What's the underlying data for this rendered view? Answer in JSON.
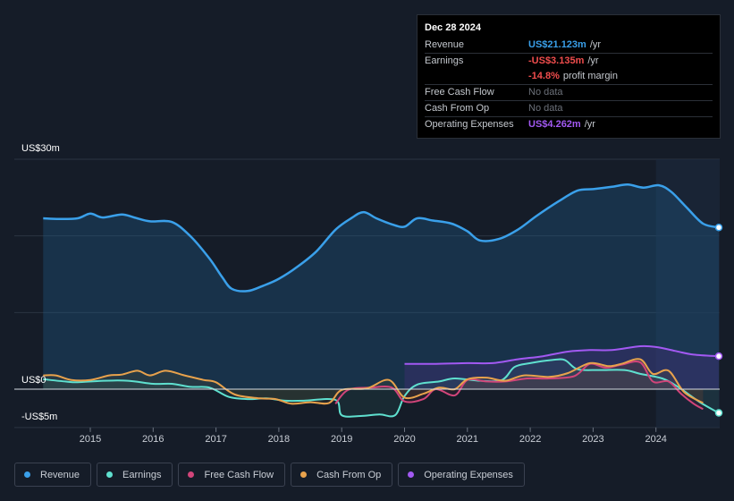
{
  "tooltip": {
    "date": "Dec 28 2024",
    "rows": {
      "revenue": {
        "label": "Revenue",
        "value": "US$21.123m",
        "unit": "/yr",
        "color": "#3aa0ea"
      },
      "earnings": {
        "label": "Earnings",
        "value": "-US$3.135m",
        "unit": "/yr",
        "color": "#f04d4d"
      },
      "margin": {
        "value": "-14.8%",
        "unit": "profit margin",
        "color": "#f04d4d"
      },
      "fcf": {
        "label": "Free Cash Flow",
        "value": "No data"
      },
      "cfo": {
        "label": "Cash From Op",
        "value": "No data"
      },
      "opex": {
        "label": "Operating Expenses",
        "value": "US$4.262m",
        "unit": "/yr",
        "color": "#a259f2"
      }
    }
  },
  "chart_data": {
    "type": "area",
    "title": "",
    "xlabel": "",
    "ylabel": "",
    "ylim": [
      -5,
      30
    ],
    "y_tick_labels": [
      "US$30m",
      "US$0",
      "-US$5m"
    ],
    "x_tick_labels": [
      "2015",
      "2016",
      "2017",
      "2018",
      "2019",
      "2020",
      "2021",
      "2022",
      "2023",
      "2024"
    ],
    "x_range": [
      2014.2,
      2025.0
    ],
    "highlight_start": 2024.0,
    "series": [
      {
        "name": "Revenue",
        "color": "#3aa0ea",
        "points": [
          [
            2014.25,
            22.3
          ],
          [
            2014.5,
            22.2
          ],
          [
            2014.8,
            22.3
          ],
          [
            2015.0,
            22.9
          ],
          [
            2015.2,
            22.4
          ],
          [
            2015.5,
            22.8
          ],
          [
            2015.7,
            22.4
          ],
          [
            2015.95,
            21.9
          ],
          [
            2016.3,
            21.8
          ],
          [
            2016.6,
            19.9
          ],
          [
            2016.9,
            17.0
          ],
          [
            2017.1,
            14.6
          ],
          [
            2017.25,
            13.1
          ],
          [
            2017.5,
            12.8
          ],
          [
            2017.75,
            13.5
          ],
          [
            2018.0,
            14.4
          ],
          [
            2018.3,
            16.0
          ],
          [
            2018.6,
            18.0
          ],
          [
            2018.9,
            20.8
          ],
          [
            2019.15,
            22.3
          ],
          [
            2019.35,
            23.1
          ],
          [
            2019.55,
            22.3
          ],
          [
            2019.8,
            21.5
          ],
          [
            2020.0,
            21.2
          ],
          [
            2020.2,
            22.3
          ],
          [
            2020.45,
            22.0
          ],
          [
            2020.75,
            21.6
          ],
          [
            2021.0,
            20.6
          ],
          [
            2021.2,
            19.4
          ],
          [
            2021.5,
            19.6
          ],
          [
            2021.8,
            20.8
          ],
          [
            2022.1,
            22.6
          ],
          [
            2022.45,
            24.5
          ],
          [
            2022.75,
            25.9
          ],
          [
            2023.0,
            26.1
          ],
          [
            2023.3,
            26.4
          ],
          [
            2023.55,
            26.7
          ],
          [
            2023.8,
            26.3
          ],
          [
            2024.05,
            26.6
          ],
          [
            2024.25,
            25.7
          ],
          [
            2024.5,
            23.6
          ],
          [
            2024.75,
            21.6
          ],
          [
            2025.0,
            21.1
          ]
        ]
      },
      {
        "name": "Earnings",
        "color": "#5fe0cf",
        "points": [
          [
            2014.25,
            1.3
          ],
          [
            2014.6,
            1.0
          ],
          [
            2014.8,
            0.9
          ],
          [
            2015.2,
            1.1
          ],
          [
            2015.6,
            1.1
          ],
          [
            2016.0,
            0.7
          ],
          [
            2016.3,
            0.7
          ],
          [
            2016.6,
            0.3
          ],
          [
            2016.9,
            0.2
          ],
          [
            2017.2,
            -1.0
          ],
          [
            2017.5,
            -1.3
          ],
          [
            2017.8,
            -1.2
          ],
          [
            2018.1,
            -1.5
          ],
          [
            2018.4,
            -1.5
          ],
          [
            2018.9,
            -1.4
          ],
          [
            2019.0,
            -3.4
          ],
          [
            2019.3,
            -3.5
          ],
          [
            2019.6,
            -3.3
          ],
          [
            2019.85,
            -3.4
          ],
          [
            2020.0,
            -0.9
          ],
          [
            2020.2,
            0.6
          ],
          [
            2020.55,
            1.0
          ],
          [
            2020.8,
            1.4
          ],
          [
            2021.2,
            1.1
          ],
          [
            2021.55,
            1.2
          ],
          [
            2021.75,
            2.9
          ],
          [
            2022.0,
            3.4
          ],
          [
            2022.35,
            3.8
          ],
          [
            2022.55,
            3.8
          ],
          [
            2022.75,
            2.6
          ],
          [
            2023.1,
            2.5
          ],
          [
            2023.5,
            2.5
          ],
          [
            2023.75,
            2.0
          ],
          [
            2024.1,
            1.4
          ],
          [
            2024.35,
            0.3
          ],
          [
            2024.7,
            -1.7
          ],
          [
            2025.0,
            -3.1
          ]
        ]
      },
      {
        "name": "Free Cash Flow",
        "color": "#d2457a",
        "points": [
          [
            2018.9,
            -1.9
          ],
          [
            2019.1,
            -0.1
          ],
          [
            2019.45,
            0.2
          ],
          [
            2019.8,
            0.2
          ],
          [
            2020.0,
            -1.6
          ],
          [
            2020.3,
            -1.3
          ],
          [
            2020.5,
            0.0
          ],
          [
            2020.8,
            -0.8
          ],
          [
            2021.0,
            1.2
          ],
          [
            2021.3,
            1.0
          ],
          [
            2021.6,
            1.0
          ],
          [
            2021.95,
            1.4
          ],
          [
            2022.3,
            1.4
          ],
          [
            2022.7,
            1.7
          ],
          [
            2022.95,
            3.3
          ],
          [
            2023.2,
            2.8
          ],
          [
            2023.45,
            3.2
          ],
          [
            2023.75,
            3.5
          ],
          [
            2023.95,
            1.0
          ],
          [
            2024.2,
            1.0
          ],
          [
            2024.4,
            -0.6
          ],
          [
            2024.6,
            -1.9
          ],
          [
            2024.75,
            -2.6
          ]
        ]
      },
      {
        "name": "Cash From Op",
        "color": "#e8a24c",
        "points": [
          [
            2014.25,
            1.8
          ],
          [
            2014.45,
            1.8
          ],
          [
            2014.7,
            1.2
          ],
          [
            2015.0,
            1.2
          ],
          [
            2015.3,
            1.8
          ],
          [
            2015.5,
            1.9
          ],
          [
            2015.75,
            2.4
          ],
          [
            2015.95,
            1.8
          ],
          [
            2016.2,
            2.4
          ],
          [
            2016.5,
            1.8
          ],
          [
            2016.8,
            1.2
          ],
          [
            2017.0,
            0.9
          ],
          [
            2017.3,
            -0.7
          ],
          [
            2017.7,
            -1.2
          ],
          [
            2017.95,
            -1.3
          ],
          [
            2018.2,
            -1.9
          ],
          [
            2018.5,
            -1.7
          ],
          [
            2018.8,
            -1.8
          ],
          [
            2019.0,
            -0.1
          ],
          [
            2019.4,
            0.1
          ],
          [
            2019.75,
            1.2
          ],
          [
            2020.0,
            -1.1
          ],
          [
            2020.3,
            -0.6
          ],
          [
            2020.55,
            0.2
          ],
          [
            2020.8,
            0.0
          ],
          [
            2021.0,
            1.3
          ],
          [
            2021.3,
            1.5
          ],
          [
            2021.6,
            1.1
          ],
          [
            2021.9,
            1.8
          ],
          [
            2022.3,
            1.6
          ],
          [
            2022.6,
            2.1
          ],
          [
            2022.95,
            3.4
          ],
          [
            2023.25,
            3.0
          ],
          [
            2023.45,
            3.3
          ],
          [
            2023.75,
            3.9
          ],
          [
            2023.95,
            2.0
          ],
          [
            2024.2,
            2.4
          ],
          [
            2024.45,
            -0.4
          ],
          [
            2024.75,
            -1.8
          ]
        ]
      },
      {
        "name": "Operating Expenses",
        "color": "#a259f2",
        "points": [
          [
            2020.0,
            3.3
          ],
          [
            2020.5,
            3.3
          ],
          [
            2021.0,
            3.4
          ],
          [
            2021.4,
            3.4
          ],
          [
            2021.8,
            3.9
          ],
          [
            2022.2,
            4.3
          ],
          [
            2022.6,
            4.9
          ],
          [
            2022.95,
            5.1
          ],
          [
            2023.3,
            5.1
          ],
          [
            2023.75,
            5.6
          ],
          [
            2024.0,
            5.5
          ],
          [
            2024.3,
            5.0
          ],
          [
            2024.6,
            4.5
          ],
          [
            2025.0,
            4.3
          ]
        ]
      }
    ]
  },
  "legend": [
    {
      "label": "Revenue",
      "color": "#3aa0ea"
    },
    {
      "label": "Earnings",
      "color": "#5fe0cf"
    },
    {
      "label": "Free Cash Flow",
      "color": "#d2457a"
    },
    {
      "label": "Cash From Op",
      "color": "#e8a24c"
    },
    {
      "label": "Operating Expenses",
      "color": "#a259f2"
    }
  ]
}
